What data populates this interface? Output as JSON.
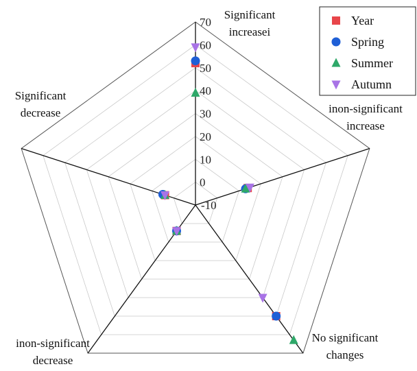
{
  "chart_data": {
    "type": "radar",
    "title": "",
    "axes": [
      {
        "name": "axis-significant-increase",
        "lines": [
          "Significant",
          "increasei"
        ]
      },
      {
        "name": "axis-non-significant-increase",
        "lines": [
          "inon-significant",
          "increase"
        ]
      },
      {
        "name": "axis-no-significant-changes",
        "lines": [
          "No significant",
          "changes"
        ]
      },
      {
        "name": "axis-non-significant-decrease",
        "lines": [
          "inon-significant",
          "decrease"
        ]
      },
      {
        "name": "axis-significant-decrease",
        "lines": [
          "Significant",
          "decrease"
        ]
      }
    ],
    "radial_range": [
      -10,
      70
    ],
    "radial_ticks": [
      "-10",
      "0",
      "10",
      "20",
      "30",
      "40",
      "50",
      "60",
      "70"
    ],
    "tick_values": [
      -10,
      0,
      10,
      20,
      30,
      40,
      50,
      60,
      70
    ],
    "grid": true,
    "legend_position": "top-right",
    "series": [
      {
        "name": "Year",
        "marker": "square",
        "color": "#e8454a",
        "values": [
          52,
          14,
          50,
          4,
          4
        ]
      },
      {
        "name": "Spring",
        "marker": "circle",
        "color": "#1f5fd6",
        "values": [
          53,
          13,
          50,
          4,
          5
        ]
      },
      {
        "name": "Summer",
        "marker": "triangle-up",
        "color": "#2ea869",
        "values": [
          39,
          13,
          63,
          4,
          4
        ]
      },
      {
        "name": "Autumn",
        "marker": "triangle-down",
        "color": "#a873e6",
        "values": [
          59,
          15,
          40,
          4,
          4
        ]
      }
    ]
  }
}
